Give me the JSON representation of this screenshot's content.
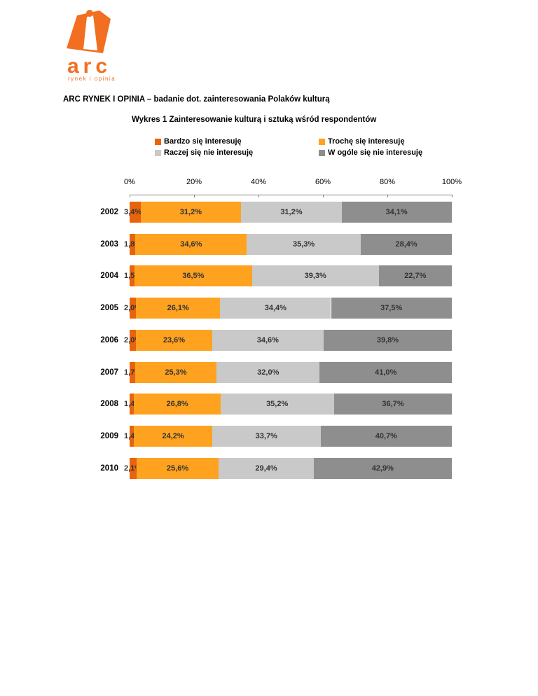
{
  "header": {
    "title": "ARC RYNEK I OPINIA – badanie dot. zainteresowania Polaków kulturą"
  },
  "logo": {
    "brand": "arc",
    "tagline": "rynek i opinia",
    "color": "#F26F21"
  },
  "chart_data": {
    "type": "bar",
    "orientation": "horizontal",
    "stacked": true,
    "title": "Wykres 1 Zainteresowanie kulturą i sztuką wśród respondentów",
    "categories": [
      "2002",
      "2003",
      "2004",
      "2005",
      "2006",
      "2007",
      "2008",
      "2009",
      "2010"
    ],
    "series": [
      {
        "name": "Bardzo się interesuję",
        "color": "#E8640C",
        "values": [
          3.4,
          1.8,
          1.5,
          2.0,
          2.0,
          1.7,
          1.4,
          1.4,
          2.1
        ],
        "labels": [
          "3,4%",
          "1,8%",
          "1,5%",
          "2,0%",
          "2,0%",
          "1,7%",
          "1,4%",
          "1,4%",
          "2,1%"
        ]
      },
      {
        "name": "Trochę się interesuję",
        "color": "#FFA21F",
        "values": [
          31.2,
          34.6,
          36.5,
          26.1,
          23.6,
          25.3,
          26.8,
          24.2,
          25.6
        ],
        "labels": [
          "31,2%",
          "34,6%",
          "36,5%",
          "26,1%",
          "23,6%",
          "25,3%",
          "26,8%",
          "24,2%",
          "25,6%"
        ]
      },
      {
        "name": "Raczej się nie interesuję",
        "color": "#C9C9C9",
        "values": [
          31.2,
          35.3,
          39.3,
          34.4,
          34.6,
          32.0,
          35.2,
          33.7,
          29.4
        ],
        "labels": [
          "31,2%",
          "35,3%",
          "39,3%",
          "34,4%",
          "34,6%",
          "32,0%",
          "35,2%",
          "33,7%",
          "29,4%"
        ]
      },
      {
        "name": "W ogóle się nie interesuję",
        "color": "#8E8E8E",
        "values": [
          34.1,
          28.4,
          22.7,
          37.5,
          39.8,
          41.0,
          36.7,
          40.7,
          42.9
        ],
        "labels": [
          "34,1%",
          "28,4%",
          "22,7%",
          "37,5%",
          "39,8%",
          "41,0%",
          "36,7%",
          "40,7%",
          "42,9%"
        ]
      }
    ],
    "x_axis": {
      "ticks": [
        "0%",
        "20%",
        "40%",
        "60%",
        "80%",
        "100%"
      ],
      "tick_percents": [
        0,
        20,
        40,
        60,
        80,
        100
      ],
      "range": [
        0,
        100
      ]
    },
    "legend_position": "top",
    "grid": false
  }
}
